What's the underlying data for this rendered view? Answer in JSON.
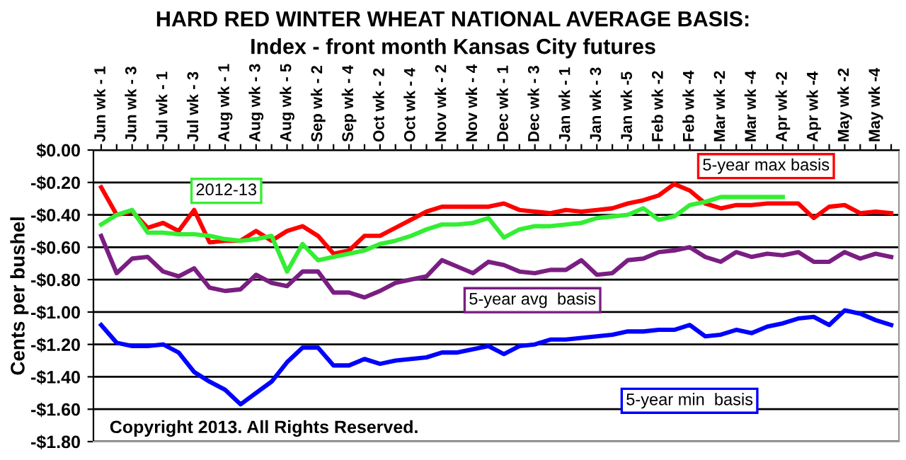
{
  "chart_data": {
    "type": "line",
    "title": "HARD RED WINTER WHEAT NATIONAL AVERAGE BASIS:",
    "subtitle": "Index - front month Kansas City futures",
    "ylabel": "Cents per bushel",
    "annotations": [
      "Copyright 2013. All Rights Reserved."
    ],
    "categories": [
      "Jun wk - 1",
      null,
      "Jun wk - 3",
      null,
      "Jul wk - 1",
      null,
      "Jul wk - 3",
      null,
      "Aug wk - 1",
      null,
      "Aug wk - 3",
      null,
      "Aug wk - 5",
      null,
      "Sep wk - 2",
      null,
      "Sep wk - 4",
      null,
      "Oct wk - 2",
      null,
      "Oct wk - 4",
      null,
      "Nov wk - 2",
      null,
      "Nov wk - 4",
      null,
      "Dec wk - 1",
      null,
      "Dec wk - 3",
      null,
      "Jan wk - 1",
      null,
      "Jan wk - 3",
      null,
      "Jan wk -5",
      null,
      "Feb wk -2",
      null,
      "Feb wk -4",
      null,
      "Mar wk -2",
      null,
      "Mar wk -4",
      null,
      "Apr wk -2",
      null,
      "Apr wk -4",
      null,
      "May wk -2",
      null,
      "May wk -4",
      null
    ],
    "series": [
      {
        "name": "5-year max basis",
        "color": "#ff0000",
        "values": [
          -0.23,
          -0.4,
          -0.38,
          -0.48,
          -0.45,
          -0.5,
          -0.37,
          -0.57,
          -0.56,
          -0.56,
          -0.5,
          -0.56,
          -0.5,
          -0.47,
          -0.53,
          -0.64,
          -0.62,
          -0.53,
          -0.53,
          -0.48,
          -0.43,
          -0.38,
          -0.35,
          -0.35,
          -0.35,
          -0.35,
          -0.33,
          -0.37,
          -0.38,
          -0.39,
          -0.37,
          -0.38,
          -0.37,
          -0.36,
          -0.33,
          -0.31,
          -0.28,
          -0.21,
          -0.25,
          -0.33,
          -0.36,
          -0.34,
          -0.34,
          -0.33,
          -0.33,
          -0.33,
          -0.42,
          -0.35,
          -0.34,
          -0.39,
          -0.38,
          -0.39
        ]
      },
      {
        "name": "2012-13",
        "color": "#33ee33",
        "values": [
          -0.46,
          -0.4,
          -0.37,
          -0.51,
          -0.51,
          -0.52,
          -0.52,
          -0.53,
          -0.55,
          -0.56,
          -0.55,
          -0.53,
          -0.75,
          -0.58,
          -0.68,
          -0.66,
          -0.64,
          -0.62,
          -0.58,
          -0.56,
          -0.53,
          -0.49,
          -0.46,
          -0.46,
          -0.45,
          -0.42,
          -0.54,
          -0.49,
          -0.47,
          -0.47,
          -0.46,
          -0.45,
          -0.42,
          -0.41,
          -0.4,
          -0.36,
          -0.43,
          -0.41,
          -0.34,
          -0.32,
          -0.29,
          -0.29,
          -0.29,
          -0.29,
          -0.29,
          null,
          null,
          null,
          null,
          null,
          null,
          null
        ]
      },
      {
        "name": "5-year avg  basis",
        "color": "#7a1e82",
        "values": [
          -0.53,
          -0.76,
          -0.67,
          -0.66,
          -0.75,
          -0.78,
          -0.73,
          -0.85,
          -0.87,
          -0.86,
          -0.77,
          -0.82,
          -0.84,
          -0.75,
          -0.75,
          -0.88,
          -0.88,
          -0.91,
          -0.87,
          -0.82,
          -0.8,
          -0.78,
          -0.68,
          -0.72,
          -0.76,
          -0.69,
          -0.71,
          -0.75,
          -0.76,
          -0.74,
          -0.74,
          -0.68,
          -0.77,
          -0.76,
          -0.68,
          -0.67,
          -0.63,
          -0.62,
          -0.6,
          -0.66,
          -0.69,
          -0.63,
          -0.66,
          -0.64,
          -0.65,
          -0.63,
          -0.69,
          -0.69,
          -0.63,
          -0.67,
          -0.64,
          -0.66
        ]
      },
      {
        "name": "5-year min  basis",
        "color": "#0000ff",
        "values": [
          -1.08,
          -1.19,
          -1.21,
          -1.21,
          -1.2,
          -1.25,
          -1.37,
          -1.43,
          -1.48,
          -1.57,
          -1.5,
          -1.43,
          -1.31,
          -1.22,
          -1.22,
          -1.33,
          -1.33,
          -1.29,
          -1.32,
          -1.3,
          -1.29,
          -1.28,
          -1.25,
          -1.25,
          -1.23,
          -1.21,
          -1.26,
          -1.21,
          -1.2,
          -1.17,
          -1.17,
          -1.16,
          -1.15,
          -1.14,
          -1.12,
          -1.12,
          -1.11,
          -1.11,
          -1.08,
          -1.15,
          -1.14,
          -1.11,
          -1.13,
          -1.09,
          -1.07,
          -1.04,
          -1.03,
          -1.08,
          -0.99,
          -1.01,
          -1.05,
          -1.08
        ]
      }
    ],
    "ylim": [
      -1.8,
      0
    ],
    "yticks": [
      {
        "value": 0,
        "label": "$0.00"
      },
      {
        "value": -0.2,
        "label": "-$0.20"
      },
      {
        "value": -0.4,
        "label": "-$0.40"
      },
      {
        "value": -0.6,
        "label": "-$0.60"
      },
      {
        "value": -0.8,
        "label": "-$0.80"
      },
      {
        "value": -1.0,
        "label": "-$1.00"
      },
      {
        "value": -1.2,
        "label": "-$1.20"
      },
      {
        "value": -1.4,
        "label": "-$1.40"
      },
      {
        "value": -1.6,
        "label": "-$1.60"
      },
      {
        "value": -1.8,
        "label": "-$1.80"
      }
    ],
    "grid": "y",
    "legend": false,
    "marker": "none",
    "line_style": "solid"
  }
}
